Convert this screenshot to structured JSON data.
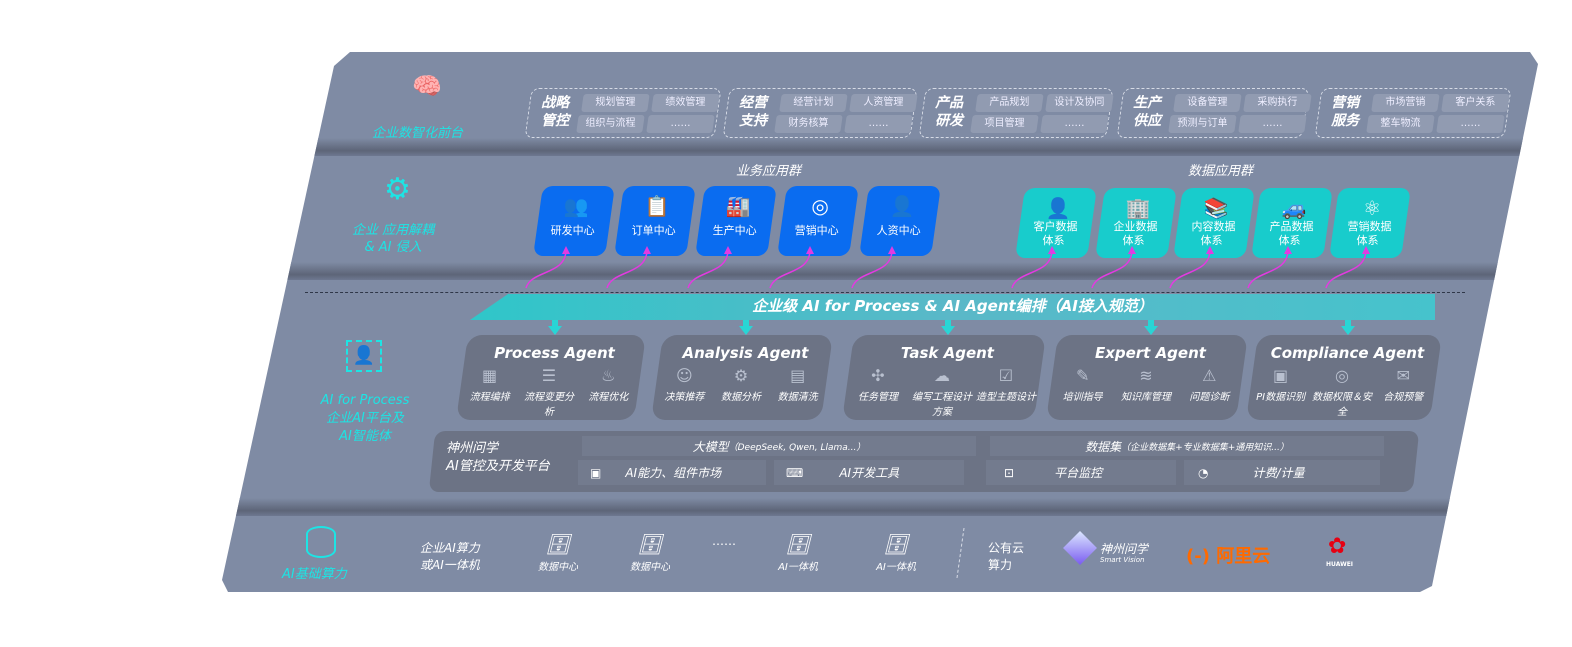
{
  "front": {
    "label": "企业数智化前台",
    "icon": "brain-icon",
    "groups": [
      {
        "title": [
          "战略",
          "管控"
        ],
        "items": [
          "规划管理",
          "绩效管理",
          "组织与流程",
          "……"
        ]
      },
      {
        "title": [
          "经营",
          "支持"
        ],
        "items": [
          "经营计划",
          "人资管理",
          "财务核算",
          "……"
        ]
      },
      {
        "title": [
          "产品",
          "研发"
        ],
        "items": [
          "产品规划",
          "设计及协同",
          "项目管理",
          "……"
        ]
      },
      {
        "title": [
          "生产",
          "供应"
        ],
        "items": [
          "设备管理",
          "采购执行",
          "预测与订单",
          "……"
        ]
      },
      {
        "title": [
          "营销",
          "服务"
        ],
        "items": [
          "市场营销",
          "客户关系",
          "整车物流",
          "……"
        ]
      }
    ]
  },
  "apps": {
    "label": [
      "企业 应用解耦",
      "& AI 侵入"
    ],
    "icon": "molecule-icon",
    "business_title": "业务应用群",
    "business": [
      {
        "label": "研发中心",
        "icon": "users-icon",
        "glyph": "👥"
      },
      {
        "label": "订单中心",
        "icon": "clipboard-icon",
        "glyph": "📋"
      },
      {
        "label": "生产中心",
        "icon": "factory-icon",
        "glyph": "🏭"
      },
      {
        "label": "营销中心",
        "icon": "target-icon",
        "glyph": "◎"
      },
      {
        "label": "人资中心",
        "icon": "person-icon",
        "glyph": "👤"
      }
    ],
    "data_title": "数据应用群",
    "data": [
      {
        "label": [
          "客户数据",
          "体系"
        ],
        "icon": "user-icon",
        "glyph": "👤"
      },
      {
        "label": [
          "企业数据",
          "体系"
        ],
        "icon": "building-icon",
        "glyph": "🏢"
      },
      {
        "label": [
          "内容数据",
          "体系"
        ],
        "icon": "books-icon",
        "glyph": "📚"
      },
      {
        "label": [
          "产品数据",
          "体系"
        ],
        "icon": "car-icon",
        "glyph": "🚙"
      },
      {
        "label": [
          "营销数据",
          "体系"
        ],
        "icon": "atom-icon",
        "glyph": "⚛"
      }
    ]
  },
  "orchestration": "企业级 AI for Process & AI Agent编排（AI接入规范）",
  "process": {
    "label": [
      "AI for Process",
      "企业AI平台及",
      "AI智能体"
    ],
    "icon": "face-scan-icon",
    "agents": [
      {
        "name": "Process Agent",
        "items": [
          "流程编排",
          "流程变更分析",
          "流程优化"
        ]
      },
      {
        "name": "Analysis Agent",
        "items": [
          "决策推荐",
          "数据分析",
          "数据清洗"
        ]
      },
      {
        "name": "Task Agent",
        "items": [
          "任务管理",
          "编写工程设计方案",
          "造型主题设计"
        ]
      },
      {
        "name": "Expert Agent",
        "items": [
          "培训指导",
          "知识库管理",
          "问题诊断"
        ]
      },
      {
        "name": "Compliance Agent",
        "items": [
          "PI数据识别",
          "数据权限＆安全",
          "合规预警"
        ]
      }
    ],
    "platform": {
      "title": [
        "神州问学",
        "AI管控及开发平台"
      ],
      "model": "大模型",
      "model_note": "（DeepSeek, Qwen, Llama...）",
      "dataset": "数据集",
      "dataset_note": "（企业数据集+专业数据集+通用知识...）",
      "tools": [
        "AI能力、组件市场",
        "AI开发工具",
        "平台监控",
        "计费/计量"
      ]
    }
  },
  "infra": {
    "label": "AI基础算力",
    "icon": "database-icon",
    "enterprise": [
      "企业AI算力",
      "或AI一体机"
    ],
    "servers": [
      "数据中心",
      "数据中心",
      "AI一体机",
      "AI一体机"
    ],
    "ellipsis": "……",
    "public": [
      "公有云",
      "算力"
    ],
    "vendors": {
      "smartvision": "神州问学",
      "smartvision_en": "Smart Vision",
      "aliyun": "阿里云",
      "huawei": "HUAWEI"
    }
  },
  "colors": {
    "panel": "#7f8ba4",
    "blue": "#0a6cf0",
    "teal": "#18cccc",
    "accent": "#1de4e4",
    "arrow": "#e23be0",
    "aliyun": "#ff6a00",
    "huawei": "#e60012"
  }
}
